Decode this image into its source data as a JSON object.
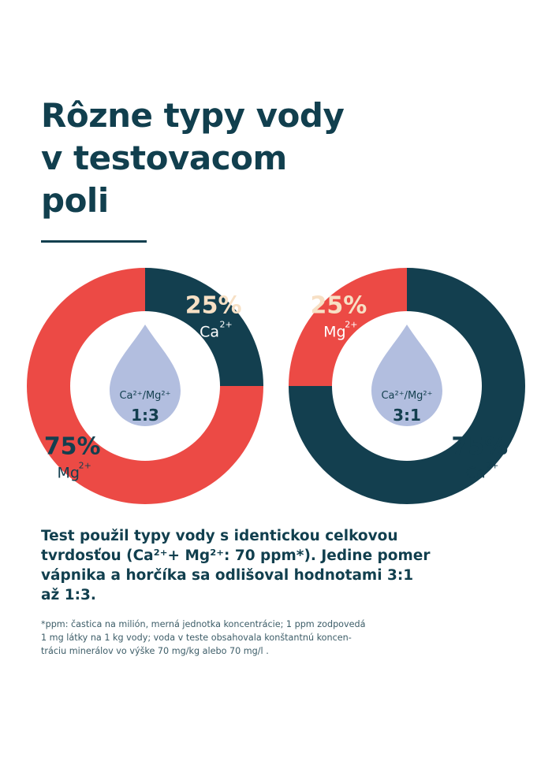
{
  "title": {
    "line1": "Rôzne typy vody",
    "line2": "v testovacom",
    "line3": "poli"
  },
  "colors": {
    "dark": "#133f4f",
    "red": "#ec4a45",
    "drop": "#b2bedf",
    "label_light": "#f7e0c5"
  },
  "chart_data": [
    {
      "type": "pie",
      "center_label": {
        "ratio_text": "Ca²⁺/Mg²⁺",
        "ratio_value": "1:3"
      },
      "slices": [
        {
          "label": "Ca",
          "charge": "2+",
          "value": 25,
          "value_label": "25%",
          "color": "#133f4f"
        },
        {
          "label": "Mg",
          "charge": "2+",
          "value": 75,
          "value_label": "75%",
          "color": "#ec4a45"
        }
      ]
    },
    {
      "type": "pie",
      "center_label": {
        "ratio_text": "Ca²⁺/Mg²⁺",
        "ratio_value": "3:1"
      },
      "slices": [
        {
          "label": "Ca",
          "charge": "2+",
          "value": 75,
          "value_label": "75%",
          "color": "#133f4f"
        },
        {
          "label": "Mg",
          "charge": "2+",
          "value": 25,
          "value_label": "25%",
          "color": "#ec4a45"
        }
      ]
    }
  ],
  "description": {
    "line1": "Test použil typy vody s identickou celkovou",
    "line2": "tvrdosťou (Ca²⁺+ Mg²⁺: 70 ppm*). Jedine pomer",
    "line3": "vápnika a horčíka sa odlišoval hodnotami 3:1",
    "line4": "až 1:3."
  },
  "footnote": {
    "line1": "*ppm: častica na milión, merná jednotka koncentrácie; 1 ppm zodpovedá",
    "line2": "1 mg látky na 1 kg vody; voda v teste obsahovala konštantnú koncen-",
    "line3": "tráciu minerálov vo výške 70 mg/kg alebo 70 mg/l ."
  }
}
